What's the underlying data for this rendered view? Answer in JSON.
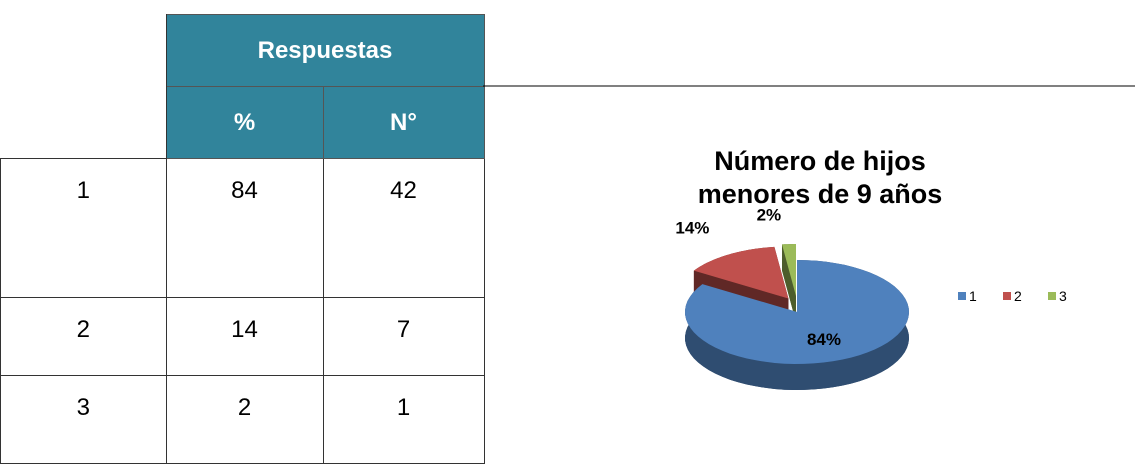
{
  "table": {
    "header": {
      "group": "Respuestas",
      "columns": [
        "%",
        "N°"
      ]
    },
    "rows": [
      [
        "1",
        "84",
        "42"
      ],
      [
        "2",
        "14",
        "7"
      ],
      [
        "3",
        "2",
        "1"
      ]
    ]
  },
  "chart_data": {
    "type": "pie",
    "title": "Número de hijos menores de 9 años",
    "categories": [
      "1",
      "2",
      "3"
    ],
    "values": [
      84,
      14,
      2
    ],
    "value_labels": [
      "84%",
      "14%",
      "2%"
    ],
    "colors": [
      "#4f81bd",
      "#c0504d",
      "#9bbb59"
    ],
    "legend": "right"
  }
}
